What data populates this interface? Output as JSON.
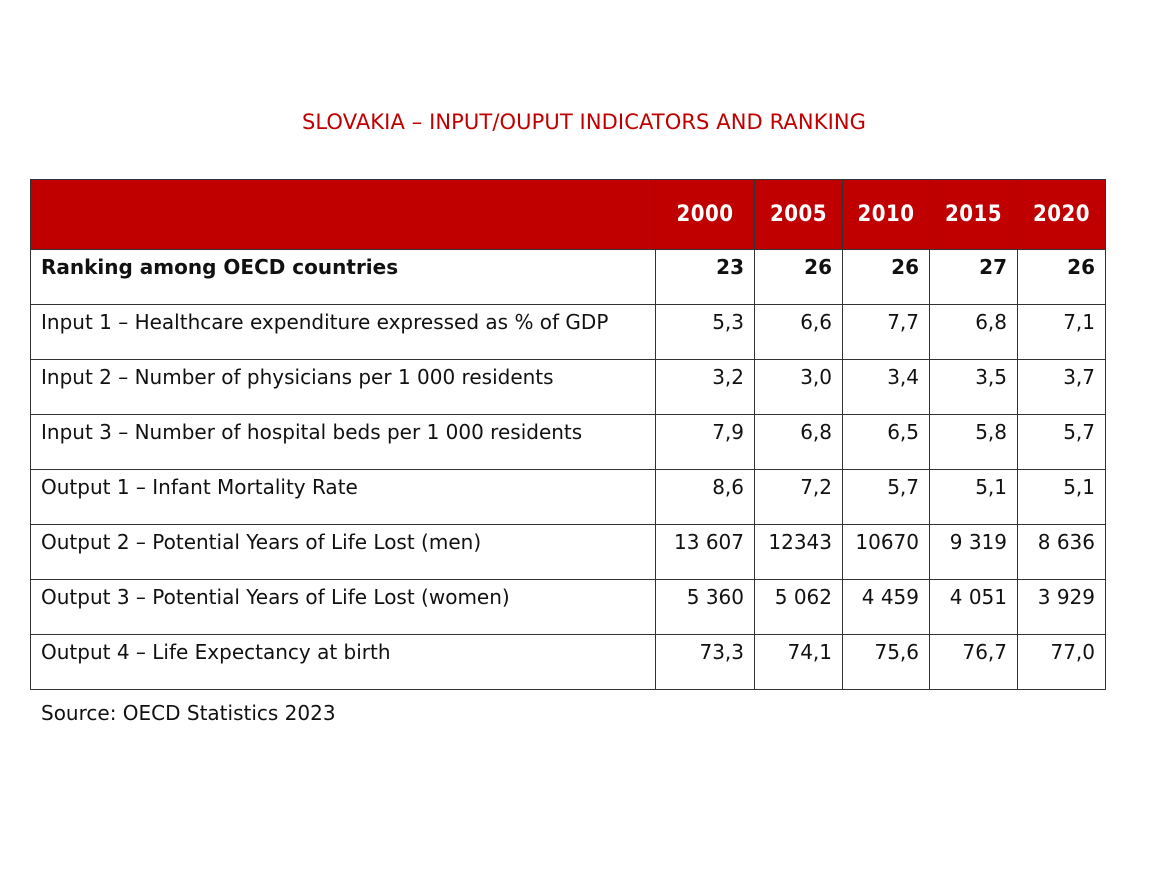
{
  "title": "SLOVAKIA – INPUT/OUPUT INDICATORS AND RANKING",
  "colors": {
    "accent": "#c00000",
    "header_text": "#ffffff"
  },
  "table": {
    "years": [
      "2000",
      "2005",
      "2010",
      "2015",
      "2020"
    ],
    "rows": [
      {
        "label": "Ranking among OECD countries",
        "values": [
          "23",
          "26",
          "26",
          "27",
          "26"
        ]
      },
      {
        "label": "Input 1 – Healthcare expenditure expressed as % of GDP",
        "values": [
          "5,3",
          "6,6",
          "7,7",
          "6,8",
          "7,1"
        ]
      },
      {
        "label": "Input 2 – Number of physicians per 1 000 residents",
        "values": [
          "3,2",
          "3,0",
          "3,4",
          "3,5",
          "3,7"
        ]
      },
      {
        "label": "Input 3 – Number of hospital beds per 1 000 residents",
        "values": [
          "7,9",
          "6,8",
          "6,5",
          "5,8",
          "5,7"
        ]
      },
      {
        "label": "Output 1 – Infant Mortality Rate",
        "values": [
          "8,6",
          "7,2",
          "5,7",
          "5,1",
          "5,1"
        ]
      },
      {
        "label": "Output 2 – Potential Years of Life Lost (men)",
        "values": [
          "13 607",
          "12343",
          "10670",
          "9 319",
          "8 636"
        ]
      },
      {
        "label": "Output 3 – Potential Years of Life Lost (women)",
        "values": [
          "5 360",
          "5 062",
          "4 459",
          "4 051",
          "3 929"
        ]
      },
      {
        "label": "Output 4 – Life Expectancy at birth",
        "values": [
          "73,3",
          "74,1",
          "75,6",
          "76,7",
          "77,0"
        ]
      }
    ]
  },
  "source": "Source: OECD Statistics 2023"
}
